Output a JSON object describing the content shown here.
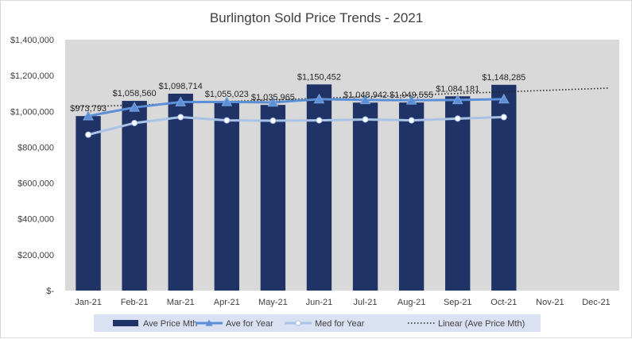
{
  "chart_data": {
    "type": "bar",
    "title": "Burlington Sold Price Trends - 2021",
    "categories": [
      "Jan-21",
      "Feb-21",
      "Mar-21",
      "Apr-21",
      "May-21",
      "Jun-21",
      "Jul-21",
      "Aug-21",
      "Sep-21",
      "Oct-21",
      "Nov-21",
      "Dec-21"
    ],
    "ylim": [
      0,
      1400000
    ],
    "yticks": [
      0,
      200000,
      400000,
      600000,
      800000,
      1000000,
      1200000,
      1400000
    ],
    "ytick_labels": [
      "$-",
      "$200,000",
      "$400,000",
      "$600,000",
      "$800,000",
      "$1,000,000",
      "$1,200,000",
      "$1,400,000"
    ],
    "grid": false,
    "legend_position": "bottom",
    "series": [
      {
        "name": "Ave Price Mth",
        "kind": "bar",
        "color": "#1f3366",
        "values": [
          973793,
          1058560,
          1098714,
          1055023,
          1035965,
          1150452,
          1048942,
          1049555,
          1084181,
          1148285,
          null,
          null
        ],
        "labels": [
          "$973,793",
          "$1,058,560",
          "$1,098,714",
          "$1,055,023",
          "$1,035,965",
          "$1,150,452",
          "$1,048,942",
          "$1,049,555",
          "$1,084,181",
          "$1,148,285",
          "",
          ""
        ]
      },
      {
        "name": "Ave for Year",
        "kind": "line",
        "marker": "triangle",
        "color": "#5b8fd6",
        "values": [
          973793,
          1022000,
          1052000,
          1053000,
          1050000,
          1068000,
          1064000,
          1062000,
          1064000,
          1068000,
          null,
          null
        ]
      },
      {
        "name": "Med for Year",
        "kind": "line",
        "marker": "circle",
        "color": "#a9c3e6",
        "values": [
          870000,
          935000,
          968000,
          950000,
          948000,
          950000,
          955000,
          950000,
          960000,
          968000,
          null,
          null
        ]
      },
      {
        "name": "Linear (Ave Price Mth)",
        "kind": "trendline",
        "color": "#262626",
        "values": [
          1025000,
          1035000,
          1045000,
          1055000,
          1064000,
          1073000,
          1082000,
          1091000,
          1100000,
          1109000,
          1118000,
          1130000
        ]
      }
    ]
  }
}
